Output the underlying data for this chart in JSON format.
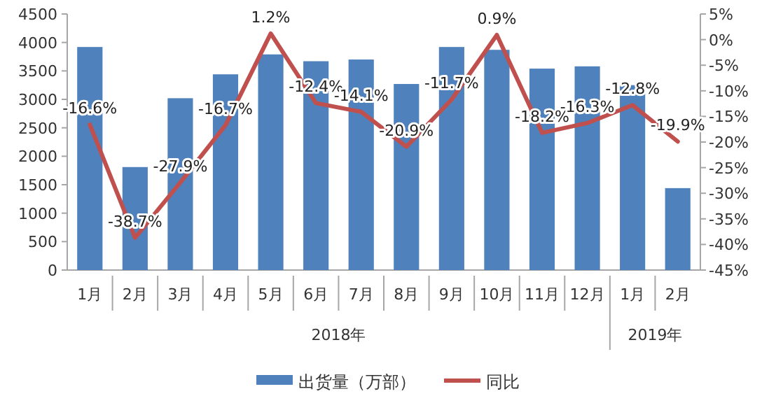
{
  "chart_data": {
    "type": "bar",
    "categories": [
      "1月",
      "2月",
      "3月",
      "4月",
      "5月",
      "6月",
      "7月",
      "8月",
      "9月",
      "10月",
      "11月",
      "12月",
      "1月",
      "2月"
    ],
    "annotations": [
      "2018年",
      "2019年"
    ],
    "series": [
      {
        "name": "出货量（万部）",
        "color": "#4f81bd",
        "values": [
          3920,
          1810,
          3020,
          3440,
          3790,
          3670,
          3700,
          3270,
          3920,
          3870,
          3540,
          3580,
          3250,
          1440
        ]
      },
      {
        "name": "同比",
        "type": "line",
        "axis": "y2",
        "color": "#c0504d",
        "marker": "none",
        "values": [
          -16.6,
          -38.7,
          -27.9,
          -16.7,
          1.2,
          -12.4,
          -14.1,
          -20.9,
          -11.7,
          0.9,
          -18.2,
          -16.3,
          -12.8,
          -19.9
        ],
        "value_labels": [
          "-16.6%",
          "-38.7%",
          "-27.9%",
          "-16.7%",
          "1.2%",
          "-12.4%",
          "-14.1%",
          "-20.9%",
          "-11.7%",
          "0.9%",
          "-18.2%",
          "-16.3%",
          "-12.8%",
          "-19.9%"
        ]
      }
    ],
    "ylim": [
      0,
      4500
    ],
    "yticks": [
      0,
      500,
      1000,
      1500,
      2000,
      2500,
      3000,
      3500,
      4000,
      4500
    ],
    "y2lim": [
      -45,
      5
    ],
    "y2ticks": [
      {
        "value": 5,
        "label": "5%"
      },
      {
        "value": 0,
        "label": "0%"
      },
      {
        "value": -5,
        "label": "-5%"
      },
      {
        "value": -10,
        "label": "-10%"
      },
      {
        "value": -15,
        "label": "-15%"
      },
      {
        "value": -20,
        "label": "-20%"
      },
      {
        "value": -25,
        "label": "-25%"
      },
      {
        "value": -30,
        "label": "-30%"
      },
      {
        "value": -35,
        "label": "-35%"
      },
      {
        "value": -40,
        "label": "-40%"
      },
      {
        "value": -45,
        "label": "-45%"
      }
    ],
    "grid": false,
    "legend": "bottom"
  }
}
